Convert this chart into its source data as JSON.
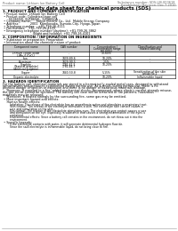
{
  "background_color": "#ffffff",
  "header_left": "Product name: Lithium Ion Battery Cell",
  "header_right_line1": "Substance number: SDS-LIB-000618",
  "header_right_line2": "Established / Revision: Dec.7.2010",
  "title": "Safety data sheet for chemical products (SDS)",
  "section1_title": "1. PRODUCT AND COMPANY IDENTIFICATION",
  "section1_lines": [
    " • Product name: Lithium Ion Battery Cell",
    " • Product code: Cylindrical-type cell",
    "      SV18650J, SV18650L, SV18650A",
    " • Company name:     Sanyo Electric Co., Ltd.  Mobile Energy Company",
    " • Address:           2001  Kamikosaka, Sumoto-City, Hyogo, Japan",
    " • Telephone number:   +81-799-26-4111",
    " • Fax number:   +81-799-26-4129",
    " • Emergency telephone number (daytime): +81-799-26-3862",
    "                              (Night and holiday): +81-799-26-4101"
  ],
  "section2_title": "2. COMPOSITION / INFORMATION ON INGREDIENTS",
  "section2_lines": [
    " • Substance or preparation: Preparation",
    " • Information about the chemical nature of product:"
  ],
  "table_header_row1": [
    "Component name",
    "CAS number",
    "Concentration /",
    "Classification and"
  ],
  "table_header_row2": [
    "",
    "",
    "Concentration range",
    "hazard labeling"
  ],
  "table_header_row3": [
    "",
    "",
    "(30-60%)",
    ""
  ],
  "table_rows": [
    [
      "Lithium cobalt oxide",
      "-",
      "30-60%",
      ""
    ],
    [
      "(LiMn₂/LiCoO₂)",
      "",
      "",
      ""
    ],
    [
      "Iron",
      "7439-89-6",
      "10-20%",
      "-"
    ],
    [
      "Aluminum",
      "7429-90-5",
      "2-5%",
      "-"
    ],
    [
      "Graphite",
      "7782-42-5",
      "10-20%",
      ""
    ],
    [
      "(Natural graphite)",
      "7782-44-7",
      "",
      ""
    ],
    [
      "(Artificial graphite)",
      "",
      "",
      ""
    ],
    [
      "Copper",
      "7440-50-8",
      "5-15%",
      "Sensitization of the skin"
    ],
    [
      "",
      "",
      "",
      "group No.2"
    ],
    [
      "Organic electrolyte",
      "-",
      "10-20%",
      "Inflammable liquid"
    ]
  ],
  "section3_title": "3. HAZARDS IDENTIFICATION",
  "section3_lines": [
    "For the battery cell, chemical materials are stored in a hermetically-sealed metal case, designed to withstand",
    "temperatures and pressures experienced during normal use. As a result, during normal use, there is no",
    "physical danger of ignition or explosion and there is no danger of hazardous materials leakage.",
    "    However, if exposed to a fire, added mechanical shocks, decomposed, where electric current strongly misuse,",
    "the gas inside cannot be operated. The battery cell case will be breached or fire patterns, hazardous",
    "materials may be released.",
    "    Moreover, if heated strongly by the surrounding fire, some gas may be emitted."
  ],
  "section3_bullet1": " • Most important hazard and effects:",
  "section3_sub1": "    Human health effects:",
  "section3_sub1_lines": [
    "        Inhalation: The release of the electrolyte has an anaesthesia action and stimulates a respiratory tract.",
    "        Skin contact: The release of the electrolyte stimulates a skin. The electrolyte skin contact causes a",
    "        sore and stimulation on the skin.",
    "        Eye contact: The release of the electrolyte stimulates eyes. The electrolyte eye contact causes a sore",
    "        and stimulation on the eye. Especially, a substance that causes a strong inflammation of the eyes is",
    "        contained.",
    "        Environmental effects: Since a battery cell remains in the environment, do not throw out it into the",
    "        environment."
  ],
  "section3_bullet2": " • Specific hazards:",
  "section3_sub2_lines": [
    "        If the electrolyte contacts with water, it will generate detrimental hydrogen fluoride.",
    "        Since the said electrolyte is inflammable liquid, do not bring close to fire."
  ]
}
